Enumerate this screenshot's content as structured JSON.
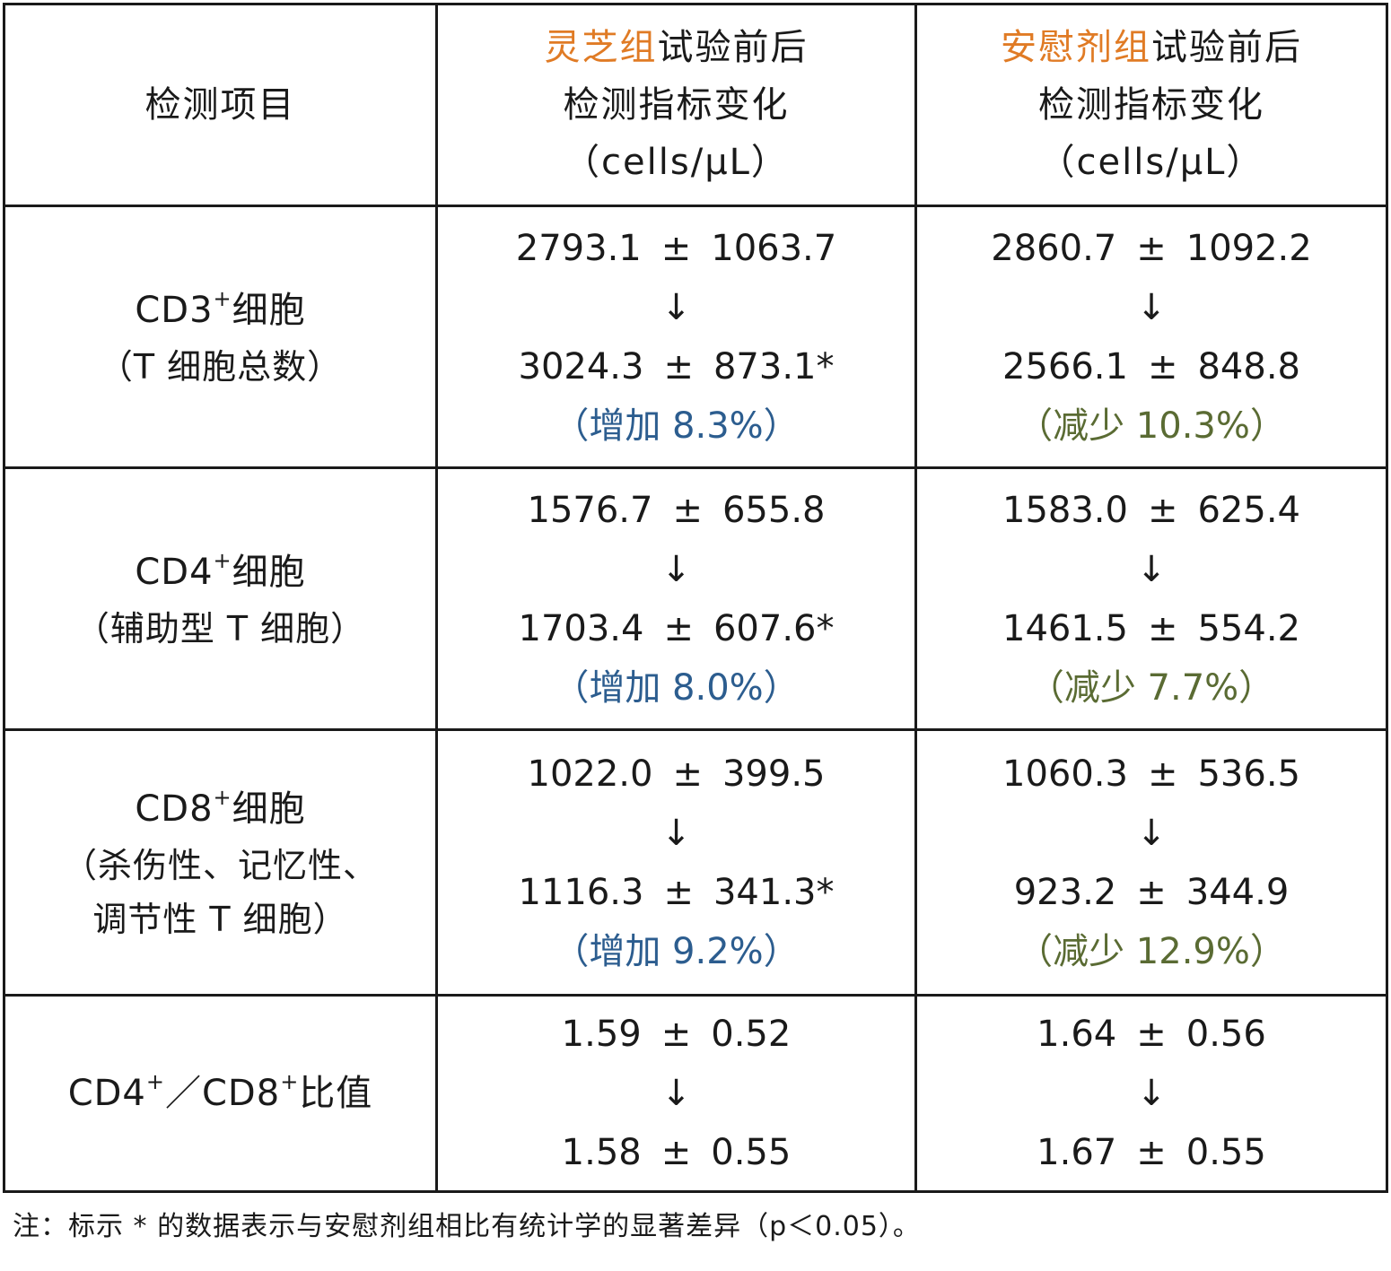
{
  "header": {
    "item_col": "检测项目",
    "group1": {
      "name": "灵芝组",
      "suffix": "试验前后",
      "line2": "检测指标变化",
      "unit": "（cells/μL）"
    },
    "group2": {
      "name": "安慰剂组",
      "suffix": "试验前后",
      "line2": "检测指标变化",
      "unit": "（cells/μL）"
    }
  },
  "symbols": {
    "plus_minus": "±",
    "arrow": "↓",
    "superscript_plus": "+"
  },
  "rows": [
    {
      "item": {
        "prefix": "CD3",
        "sup": "+",
        "suffix": "细胞",
        "sub_lines": [
          "（T 细胞总数）"
        ]
      },
      "g1": {
        "before_mean": "2793.1",
        "before_sd": "1063.7",
        "after_mean": "3024.3",
        "after_sd": "873.1*",
        "change": "（增加 8.3%）"
      },
      "g2": {
        "before_mean": "2860.7",
        "before_sd": "1092.2",
        "after_mean": "2566.1",
        "after_sd": "848.8",
        "change": "（减少 10.3%）"
      }
    },
    {
      "item": {
        "prefix": "CD4",
        "sup": "+",
        "suffix": "细胞",
        "sub_lines": [
          "（辅助型 T 细胞）"
        ]
      },
      "g1": {
        "before_mean": "1576.7",
        "before_sd": "655.8",
        "after_mean": "1703.4",
        "after_sd": "607.6*",
        "change": "（增加 8.0%）"
      },
      "g2": {
        "before_mean": "1583.0",
        "before_sd": "625.4",
        "after_mean": "1461.5",
        "after_sd": "554.2",
        "change": "（减少 7.7%）"
      }
    },
    {
      "item": {
        "prefix": "CD8",
        "sup": "+",
        "suffix": "细胞",
        "sub_lines": [
          "（杀伤性、记忆性、",
          "调节性 T 细胞）"
        ]
      },
      "g1": {
        "before_mean": "1022.0",
        "before_sd": "399.5",
        "after_mean": "1116.3",
        "after_sd": "341.3*",
        "change": "（增加 9.2%）"
      },
      "g2": {
        "before_mean": "1060.3",
        "before_sd": "536.5",
        "after_mean": "923.2",
        "after_sd": "344.9",
        "change": "（减少 12.9%）"
      }
    },
    {
      "item": {
        "prefix": "CD4",
        "sup": "+",
        "mid": "／CD8",
        "sup2": "+",
        "suffix": "比值"
      },
      "g1": {
        "before_mean": "1.59",
        "before_sd": "0.52",
        "after_mean": "1.58",
        "after_sd": "0.55"
      },
      "g2": {
        "before_mean": "1.64",
        "before_sd": "0.56",
        "after_mean": "1.67",
        "after_sd": "0.55"
      }
    }
  ],
  "note": "注：标示 * 的数据表示与安慰剂组相比有统计学的显著差异（p＜0.05）。",
  "colors": {
    "accent_orange": "#e07b25",
    "increase_blue": "#2c5d8f",
    "decrease_green": "#5a6b33",
    "border": "#1a1a1a"
  }
}
